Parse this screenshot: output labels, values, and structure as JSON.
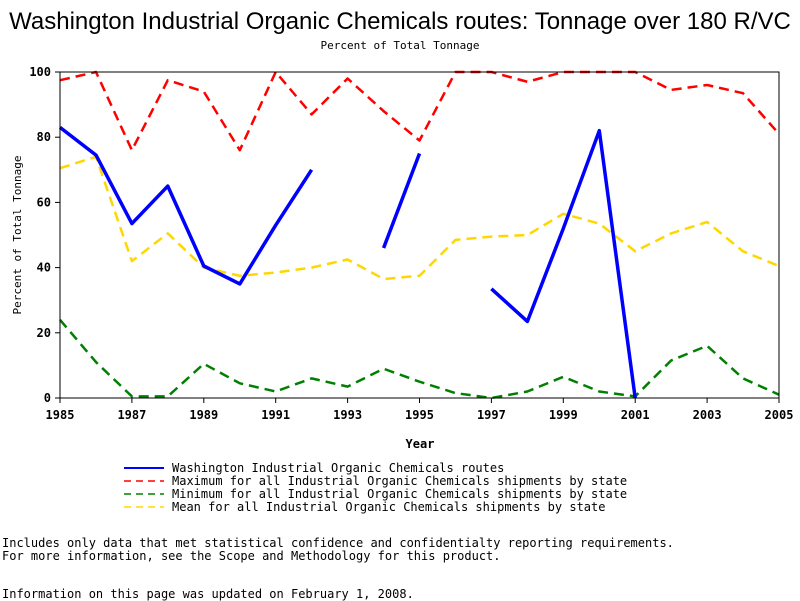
{
  "chart_data": {
    "type": "line",
    "title": "Washington Industrial Organic Chemicals routes: Tonnage over 180 R/VC",
    "subtitle": "Percent of Total Tonnage",
    "xlabel": "Year",
    "ylabel": "Percent of Total Tonnage",
    "xlim": [
      1985,
      2005
    ],
    "ylim": [
      0,
      100
    ],
    "x_ticks": [
      "1985",
      "1987",
      "1989",
      "1991",
      "1993",
      "1995",
      "1997",
      "1999",
      "2001",
      "2003",
      "2005"
    ],
    "y_ticks": [
      "0",
      "20",
      "40",
      "60",
      "80",
      "100"
    ],
    "x": [
      1985,
      1986,
      1987,
      1988,
      1989,
      1990,
      1991,
      1992,
      1993,
      1994,
      1995,
      1996,
      1997,
      1998,
      1999,
      2000,
      2001,
      2002,
      2003,
      2004,
      2005
    ],
    "series": [
      {
        "name": "Washington Industrial Organic Chemicals routes",
        "color": "#0000ff",
        "style": "solid",
        "values": [
          83,
          74.5,
          53.5,
          65,
          40.5,
          35,
          53,
          70,
          null,
          46,
          75,
          null,
          33.5,
          23.5,
          52,
          82,
          0,
          null,
          null,
          null,
          null
        ]
      },
      {
        "name": "Maximum for all Industrial Organic Chemicals shipments by state",
        "color": "#ff0000",
        "style": "dashed",
        "values": [
          97.5,
          100,
          76,
          97.5,
          94,
          76,
          100,
          87,
          98,
          88,
          79,
          100,
          100,
          97,
          100,
          100,
          100,
          94.5,
          96,
          93.5,
          81
        ]
      },
      {
        "name": "Minimum for all Industrial Organic Chemicals shipments by state",
        "color": "#008000",
        "style": "dashed",
        "values": [
          24,
          11,
          0.5,
          0.5,
          10.5,
          4.5,
          2,
          6,
          3.5,
          9,
          5,
          1.5,
          0,
          2,
          6.5,
          2,
          0.5,
          11.5,
          16,
          6,
          1
        ]
      },
      {
        "name": "Mean for all Industrial Organic Chemicals shipments by state",
        "color": "#ffd700",
        "style": "dashed",
        "values": [
          70.5,
          74,
          42,
          50.5,
          40,
          37.5,
          38.5,
          40,
          42.5,
          36.5,
          37.5,
          48.5,
          49.5,
          50,
          56.5,
          53.5,
          45,
          50.5,
          54,
          45,
          40.5
        ]
      }
    ]
  },
  "notes": {
    "line1": "Includes only data that met statistical confidence and confidentialty reporting requirements.",
    "line2": "For more information, see the Scope and Methodology for this product.",
    "updated": "Information on this page was updated on February 1, 2008."
  }
}
